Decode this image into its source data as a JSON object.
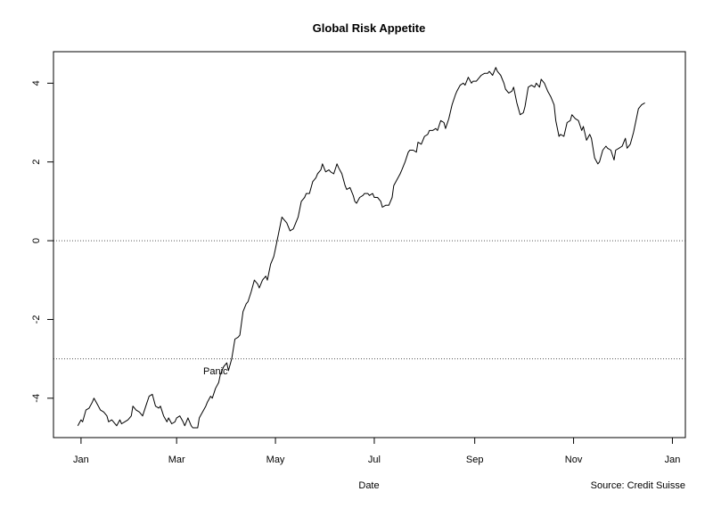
{
  "chart_data": {
    "type": "line",
    "title": "Global Risk Appetite",
    "xlabel": "Date",
    "ylabel": "",
    "source": "Source: Credit Suisse",
    "x_ticks": [
      {
        "label": "Jan",
        "day": 0
      },
      {
        "label": "Mar",
        "day": 59
      },
      {
        "label": "May",
        "day": 120
      },
      {
        "label": "Jul",
        "day": 181
      },
      {
        "label": "Sep",
        "day": 243
      },
      {
        "label": "Nov",
        "day": 304
      },
      {
        "label": "Jan",
        "day": 365
      }
    ],
    "y_ticks": [
      {
        "label": "-4",
        "value": -4
      },
      {
        "label": "-2",
        "value": -2
      },
      {
        "label": "0",
        "value": 0
      },
      {
        "label": "2",
        "value": 2
      },
      {
        "label": "4",
        "value": 4
      }
    ],
    "xlim": [
      -17,
      373
    ],
    "ylim": [
      -5.0,
      4.8
    ],
    "reference_lines": [
      {
        "value": 0,
        "style": "dotted"
      },
      {
        "value": -3,
        "style": "dotted"
      }
    ],
    "annotation": {
      "text": "Panic",
      "day": 83,
      "value": -3.3
    },
    "series": [
      {
        "values": [
          [
            -2,
            -4.7
          ],
          [
            0,
            -4.55
          ],
          [
            1,
            -4.6
          ],
          [
            3,
            -4.3
          ],
          [
            5,
            -4.25
          ],
          [
            7,
            -4.1
          ],
          [
            8,
            -4.0
          ],
          [
            10,
            -4.15
          ],
          [
            12,
            -4.3
          ],
          [
            14,
            -4.35
          ],
          [
            16,
            -4.45
          ],
          [
            17,
            -4.6
          ],
          [
            19,
            -4.55
          ],
          [
            20,
            -4.6
          ],
          [
            22,
            -4.7
          ],
          [
            24,
            -4.55
          ],
          [
            25,
            -4.65
          ],
          [
            27,
            -4.6
          ],
          [
            29,
            -4.55
          ],
          [
            31,
            -4.45
          ],
          [
            32,
            -4.2
          ],
          [
            34,
            -4.3
          ],
          [
            36,
            -4.35
          ],
          [
            38,
            -4.45
          ],
          [
            40,
            -4.2
          ],
          [
            42,
            -3.95
          ],
          [
            44,
            -3.9
          ],
          [
            46,
            -4.2
          ],
          [
            48,
            -4.25
          ],
          [
            49,
            -4.2
          ],
          [
            51,
            -4.45
          ],
          [
            53,
            -4.6
          ],
          [
            54,
            -4.5
          ],
          [
            56,
            -4.65
          ],
          [
            58,
            -4.6
          ],
          [
            59,
            -4.5
          ],
          [
            61,
            -4.45
          ],
          [
            63,
            -4.6
          ],
          [
            64,
            -4.7
          ],
          [
            66,
            -4.5
          ],
          [
            68,
            -4.7
          ],
          [
            69,
            -4.75
          ],
          [
            72,
            -4.75
          ],
          [
            73,
            -4.5
          ],
          [
            75,
            -4.35
          ],
          [
            77,
            -4.2
          ],
          [
            78,
            -4.1
          ],
          [
            80,
            -3.95
          ],
          [
            81,
            -4.0
          ],
          [
            83,
            -3.75
          ],
          [
            85,
            -3.6
          ],
          [
            86,
            -3.4
          ],
          [
            88,
            -3.2
          ],
          [
            90,
            -3.1
          ],
          [
            91,
            -3.3
          ],
          [
            93,
            -3.0
          ],
          [
            95,
            -2.5
          ],
          [
            97,
            -2.45
          ],
          [
            98,
            -2.4
          ],
          [
            100,
            -1.8
          ],
          [
            102,
            -1.6
          ],
          [
            103,
            -1.55
          ],
          [
            105,
            -1.3
          ],
          [
            107,
            -1.0
          ],
          [
            109,
            -1.1
          ],
          [
            110,
            -1.2
          ],
          [
            112,
            -1.0
          ],
          [
            114,
            -0.9
          ],
          [
            115,
            -1.0
          ],
          [
            117,
            -0.6
          ],
          [
            119,
            -0.4
          ],
          [
            120,
            -0.2
          ],
          [
            122,
            0.2
          ],
          [
            124,
            0.6
          ],
          [
            125,
            0.55
          ],
          [
            127,
            0.45
          ],
          [
            129,
            0.25
          ],
          [
            131,
            0.3
          ],
          [
            132,
            0.4
          ],
          [
            134,
            0.6
          ],
          [
            136,
            1.0
          ],
          [
            138,
            1.1
          ],
          [
            139,
            1.2
          ],
          [
            141,
            1.2
          ],
          [
            143,
            1.5
          ],
          [
            145,
            1.6
          ],
          [
            146,
            1.7
          ],
          [
            148,
            1.8
          ],
          [
            149,
            1.95
          ],
          [
            151,
            1.75
          ],
          [
            153,
            1.8
          ],
          [
            154,
            1.75
          ],
          [
            156,
            1.7
          ],
          [
            158,
            1.95
          ],
          [
            159,
            1.85
          ],
          [
            161,
            1.7
          ],
          [
            163,
            1.4
          ],
          [
            164,
            1.3
          ],
          [
            166,
            1.35
          ],
          [
            168,
            1.15
          ],
          [
            169,
            1.0
          ],
          [
            170,
            0.95
          ],
          [
            172,
            1.1
          ],
          [
            174,
            1.15
          ],
          [
            175,
            1.2
          ],
          [
            177,
            1.2
          ],
          [
            178,
            1.15
          ],
          [
            180,
            1.2
          ],
          [
            181,
            1.1
          ],
          [
            183,
            1.1
          ],
          [
            185,
            1.0
          ],
          [
            186,
            0.85
          ],
          [
            188,
            0.9
          ],
          [
            190,
            0.9
          ],
          [
            192,
            1.1
          ],
          [
            193,
            1.4
          ],
          [
            195,
            1.55
          ],
          [
            197,
            1.7
          ],
          [
            198,
            1.8
          ],
          [
            200,
            2.0
          ],
          [
            202,
            2.25
          ],
          [
            203,
            2.3
          ],
          [
            205,
            2.3
          ],
          [
            207,
            2.25
          ],
          [
            208,
            2.5
          ],
          [
            210,
            2.45
          ],
          [
            212,
            2.65
          ],
          [
            214,
            2.7
          ],
          [
            215,
            2.8
          ],
          [
            217,
            2.8
          ],
          [
            219,
            2.85
          ],
          [
            220,
            2.8
          ],
          [
            222,
            3.05
          ],
          [
            224,
            3.0
          ],
          [
            225,
            2.85
          ],
          [
            227,
            3.1
          ],
          [
            229,
            3.45
          ],
          [
            231,
            3.7
          ],
          [
            232,
            3.8
          ],
          [
            234,
            3.95
          ],
          [
            236,
            4.0
          ],
          [
            237,
            3.95
          ],
          [
            239,
            4.15
          ],
          [
            241,
            4.0
          ],
          [
            242,
            4.05
          ],
          [
            244,
            4.05
          ],
          [
            246,
            4.15
          ],
          [
            247,
            4.2
          ],
          [
            249,
            4.25
          ],
          [
            251,
            4.25
          ],
          [
            252,
            4.3
          ],
          [
            254,
            4.2
          ],
          [
            256,
            4.4
          ],
          [
            257,
            4.3
          ],
          [
            259,
            4.2
          ],
          [
            261,
            4.0
          ],
          [
            262,
            3.85
          ],
          [
            264,
            3.75
          ],
          [
            266,
            3.8
          ],
          [
            267,
            3.9
          ],
          [
            269,
            3.5
          ],
          [
            271,
            3.2
          ],
          [
            273,
            3.25
          ],
          [
            274,
            3.4
          ],
          [
            276,
            3.9
          ],
          [
            278,
            3.95
          ],
          [
            280,
            3.9
          ],
          [
            281,
            4.0
          ],
          [
            283,
            3.9
          ],
          [
            284,
            4.1
          ],
          [
            286,
            4.0
          ],
          [
            288,
            3.8
          ],
          [
            290,
            3.65
          ],
          [
            292,
            3.45
          ],
          [
            293,
            3.05
          ],
          [
            295,
            2.65
          ],
          [
            296,
            2.7
          ],
          [
            298,
            2.65
          ],
          [
            300,
            3.0
          ],
          [
            302,
            3.05
          ],
          [
            303,
            3.2
          ],
          [
            305,
            3.1
          ],
          [
            307,
            3.05
          ],
          [
            309,
            2.8
          ],
          [
            310,
            2.9
          ],
          [
            312,
            2.55
          ],
          [
            314,
            2.7
          ],
          [
            315,
            2.6
          ],
          [
            317,
            2.1
          ],
          [
            319,
            1.95
          ],
          [
            320,
            2.0
          ],
          [
            322,
            2.3
          ],
          [
            324,
            2.4
          ],
          [
            325,
            2.35
          ],
          [
            327,
            2.3
          ],
          [
            329,
            2.05
          ],
          [
            330,
            2.3
          ],
          [
            332,
            2.35
          ],
          [
            334,
            2.4
          ],
          [
            336,
            2.6
          ],
          [
            337,
            2.35
          ],
          [
            339,
            2.45
          ],
          [
            341,
            2.75
          ],
          [
            343,
            3.15
          ],
          [
            344,
            3.35
          ],
          [
            346,
            3.45
          ],
          [
            348,
            3.5
          ]
        ]
      }
    ]
  }
}
